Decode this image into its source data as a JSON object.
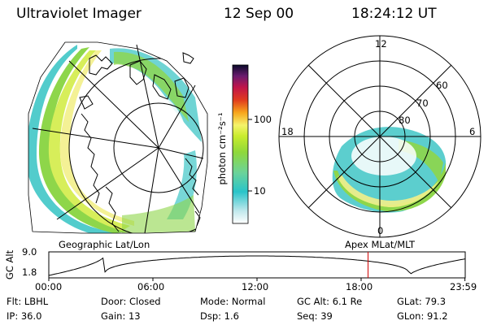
{
  "header": {
    "instrument": "Ultraviolet Imager",
    "date": "12 Sep 00",
    "time": "18:24:12 UT"
  },
  "colorbar": {
    "unit_label": "photon cm⁻²s⁻¹",
    "ticks": [
      "100",
      "10"
    ]
  },
  "left_panel": {
    "caption": "Geographic Lat/Lon"
  },
  "right_panel": {
    "caption": "Apex  MLat/MLT",
    "mlt_labels": {
      "top": "12",
      "left": "18",
      "right": "6",
      "bottom": "0"
    },
    "lat_labels": [
      "60",
      "70",
      "80"
    ]
  },
  "altitude_plot": {
    "ylabel": "GC Alt",
    "yticks": [
      "9.0",
      "1.8"
    ],
    "xticks": [
      "00:00",
      "06:00",
      "12:00",
      "18:00",
      "23:59"
    ],
    "marker_time": "18:24"
  },
  "info": {
    "flt": "Flt: LBHL",
    "ip": "IP: 36.0",
    "door": "Door: Closed",
    "gain": "Gain: 13",
    "mode": "Mode: Normal",
    "dsp": "Dsp:   1.6",
    "gc_alt": "GC Alt: 6.1 Re",
    "seq": "Seq: 39",
    "glat": "GLat:  79.3",
    "glon": "GLon:  91.2"
  }
}
